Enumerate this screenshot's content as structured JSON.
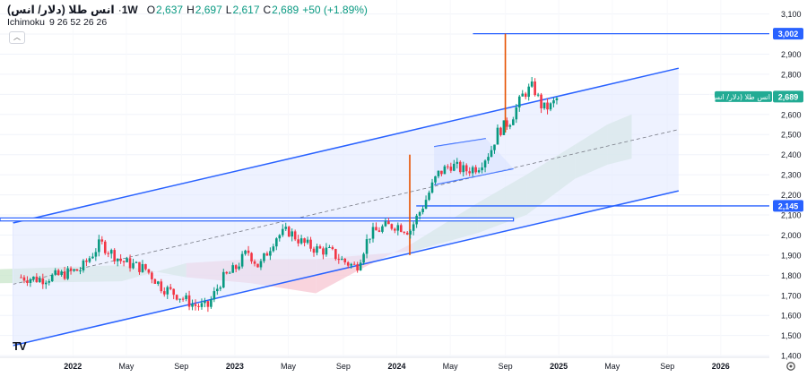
{
  "header": {
    "symbol": "انس طلا (دلار/ انس)",
    "timeframe": "1W",
    "ohlc": [
      {
        "k": "O",
        "v": "2,637"
      },
      {
        "k": "H",
        "v": "2,697"
      },
      {
        "k": "L",
        "v": "2,617"
      },
      {
        "k": "C",
        "v": "2,689"
      }
    ],
    "change": "+50 (+1.89%)",
    "indicator": "Ichimoku",
    "indicator_params": "9 26 52 26 26"
  },
  "colors": {
    "up": "#089981",
    "down": "#f23645",
    "channel": "#2962ff",
    "channel_fill": "#e3eaff",
    "cloud_bull": "#c8e6c9",
    "cloud_bear": "#f7c6d2",
    "spike": "#e65100",
    "label_bg": "#2962ff",
    "price_label_bg": "#22ab94"
  },
  "chart_data": {
    "type": "candlestick",
    "interval": "1W",
    "y_axis": {
      "range": [
        1400,
        3100
      ],
      "ticks": [
        "1,400",
        "1,500",
        "1,600",
        "1,700",
        "1,800",
        "1,900",
        "2,000",
        "2,100",
        "2,200",
        "2,300",
        "2,400",
        "2,500",
        "2,600",
        "2,700",
        "2,800",
        "2,900",
        "3,000",
        "3,100"
      ],
      "labels": [
        {
          "text": "3,002",
          "value": 3002,
          "style": "line"
        },
        {
          "text": "2,145",
          "value": 2145,
          "style": "line"
        },
        {
          "text": "2,689",
          "value": 2689,
          "style": "price"
        }
      ],
      "price_badge": "انس طلا (دلار/ انس)"
    },
    "x_axis": {
      "ticks": [
        {
          "label": "2022",
          "x": 2022.0
        },
        {
          "label": "May",
          "x": 2022.33
        },
        {
          "label": "Sep",
          "x": 2022.67
        },
        {
          "label": "2023",
          "x": 2023.0
        },
        {
          "label": "May",
          "x": 2023.33
        },
        {
          "label": "Sep",
          "x": 2023.67
        },
        {
          "label": "2024",
          "x": 2024.0
        },
        {
          "label": "May",
          "x": 2024.33
        },
        {
          "label": "Sep",
          "x": 2024.67
        },
        {
          "label": "2025",
          "x": 2025.0
        },
        {
          "label": "May",
          "x": 2025.33
        },
        {
          "label": "Sep",
          "x": 2025.67
        },
        {
          "label": "2026",
          "x": 2026.0
        }
      ]
    },
    "anchors": [
      {
        "t": 2021.68,
        "p": 1790
      },
      {
        "t": 2021.8,
        "p": 1780
      },
      {
        "t": 2021.92,
        "p": 1800
      },
      {
        "t": 2022.05,
        "p": 1830
      },
      {
        "t": 2022.17,
        "p": 1960
      },
      {
        "t": 2022.21,
        "p": 1930
      },
      {
        "t": 2022.3,
        "p": 1870
      },
      {
        "t": 2022.45,
        "p": 1830
      },
      {
        "t": 2022.55,
        "p": 1740
      },
      {
        "t": 2022.65,
        "p": 1700
      },
      {
        "t": 2022.75,
        "p": 1650
      },
      {
        "t": 2022.83,
        "p": 1640
      },
      {
        "t": 2022.92,
        "p": 1780
      },
      {
        "t": 2023.0,
        "p": 1830
      },
      {
        "t": 2023.08,
        "p": 1920
      },
      {
        "t": 2023.15,
        "p": 1840
      },
      {
        "t": 2023.25,
        "p": 1990
      },
      {
        "t": 2023.33,
        "p": 2020
      },
      {
        "t": 2023.42,
        "p": 1960
      },
      {
        "t": 2023.5,
        "p": 1930
      },
      {
        "t": 2023.58,
        "p": 1920
      },
      {
        "t": 2023.67,
        "p": 1870
      },
      {
        "t": 2023.75,
        "p": 1840
      },
      {
        "t": 2023.83,
        "p": 2000
      },
      {
        "t": 2023.92,
        "p": 2040
      },
      {
        "t": 2024.0,
        "p": 2050
      },
      {
        "t": 2024.08,
        "p": 2020
      },
      {
        "t": 2024.17,
        "p": 2160
      },
      {
        "t": 2024.25,
        "p": 2300
      },
      {
        "t": 2024.33,
        "p": 2350
      },
      {
        "t": 2024.42,
        "p": 2320
      },
      {
        "t": 2024.5,
        "p": 2340
      },
      {
        "t": 2024.58,
        "p": 2420
      },
      {
        "t": 2024.62,
        "p": 2510
      },
      {
        "t": 2024.7,
        "p": 2570
      },
      {
        "t": 2024.78,
        "p": 2700
      },
      {
        "t": 2024.84,
        "p": 2740
      },
      {
        "t": 2024.9,
        "p": 2630
      },
      {
        "t": 2024.95,
        "p": 2640
      },
      {
        "t": 2025.0,
        "p": 2689
      }
    ],
    "drawings": {
      "channel": {
        "start": {
          "t": 2021.63,
          "p": 1450
        },
        "end": {
          "t": 2025.74,
          "p": 2220
        },
        "width": 610
      },
      "inner_channel": {
        "upper": [
          [
            2024.23,
            2440
          ],
          [
            2024.55,
            2480
          ]
        ],
        "lower": [
          [
            2024.23,
            2250
          ],
          [
            2024.72,
            2330
          ]
        ]
      },
      "horizontal_levels": [
        {
          "value": 3002,
          "from": 2024.47
        },
        {
          "value": 2145,
          "from": 2024.12
        }
      ],
      "rectangle": {
        "from": 2021.55,
        "to": 2024.72,
        "top": 2085,
        "bottom": 2070
      },
      "spikes": [
        {
          "t": 2024.08,
          "from": 1900,
          "to": 2400
        },
        {
          "t": 2024.67,
          "from": 2510,
          "to": 3002
        }
      ]
    },
    "ichimoku_cloud": [
      {
        "t": 2021.55,
        "a": 1830,
        "b": 1760
      },
      {
        "t": 2022.3,
        "a": 1850,
        "b": 1770
      },
      {
        "t": 2022.7,
        "a": 1790,
        "b": 1860
      },
      {
        "t": 2023.1,
        "a": 1760,
        "b": 1880
      },
      {
        "t": 2023.5,
        "a": 1710,
        "b": 1880
      },
      {
        "t": 2023.8,
        "a": 1840,
        "b": 1900
      },
      {
        "t": 2024.1,
        "a": 1960,
        "b": 1920
      },
      {
        "t": 2024.5,
        "a": 2160,
        "b": 2010
      },
      {
        "t": 2024.8,
        "a": 2300,
        "b": 2100
      },
      {
        "t": 2025.1,
        "a": 2450,
        "b": 2280
      },
      {
        "t": 2025.3,
        "a": 2550,
        "b": 2350
      },
      {
        "t": 2025.45,
        "a": 2600,
        "b": 2380
      }
    ]
  }
}
